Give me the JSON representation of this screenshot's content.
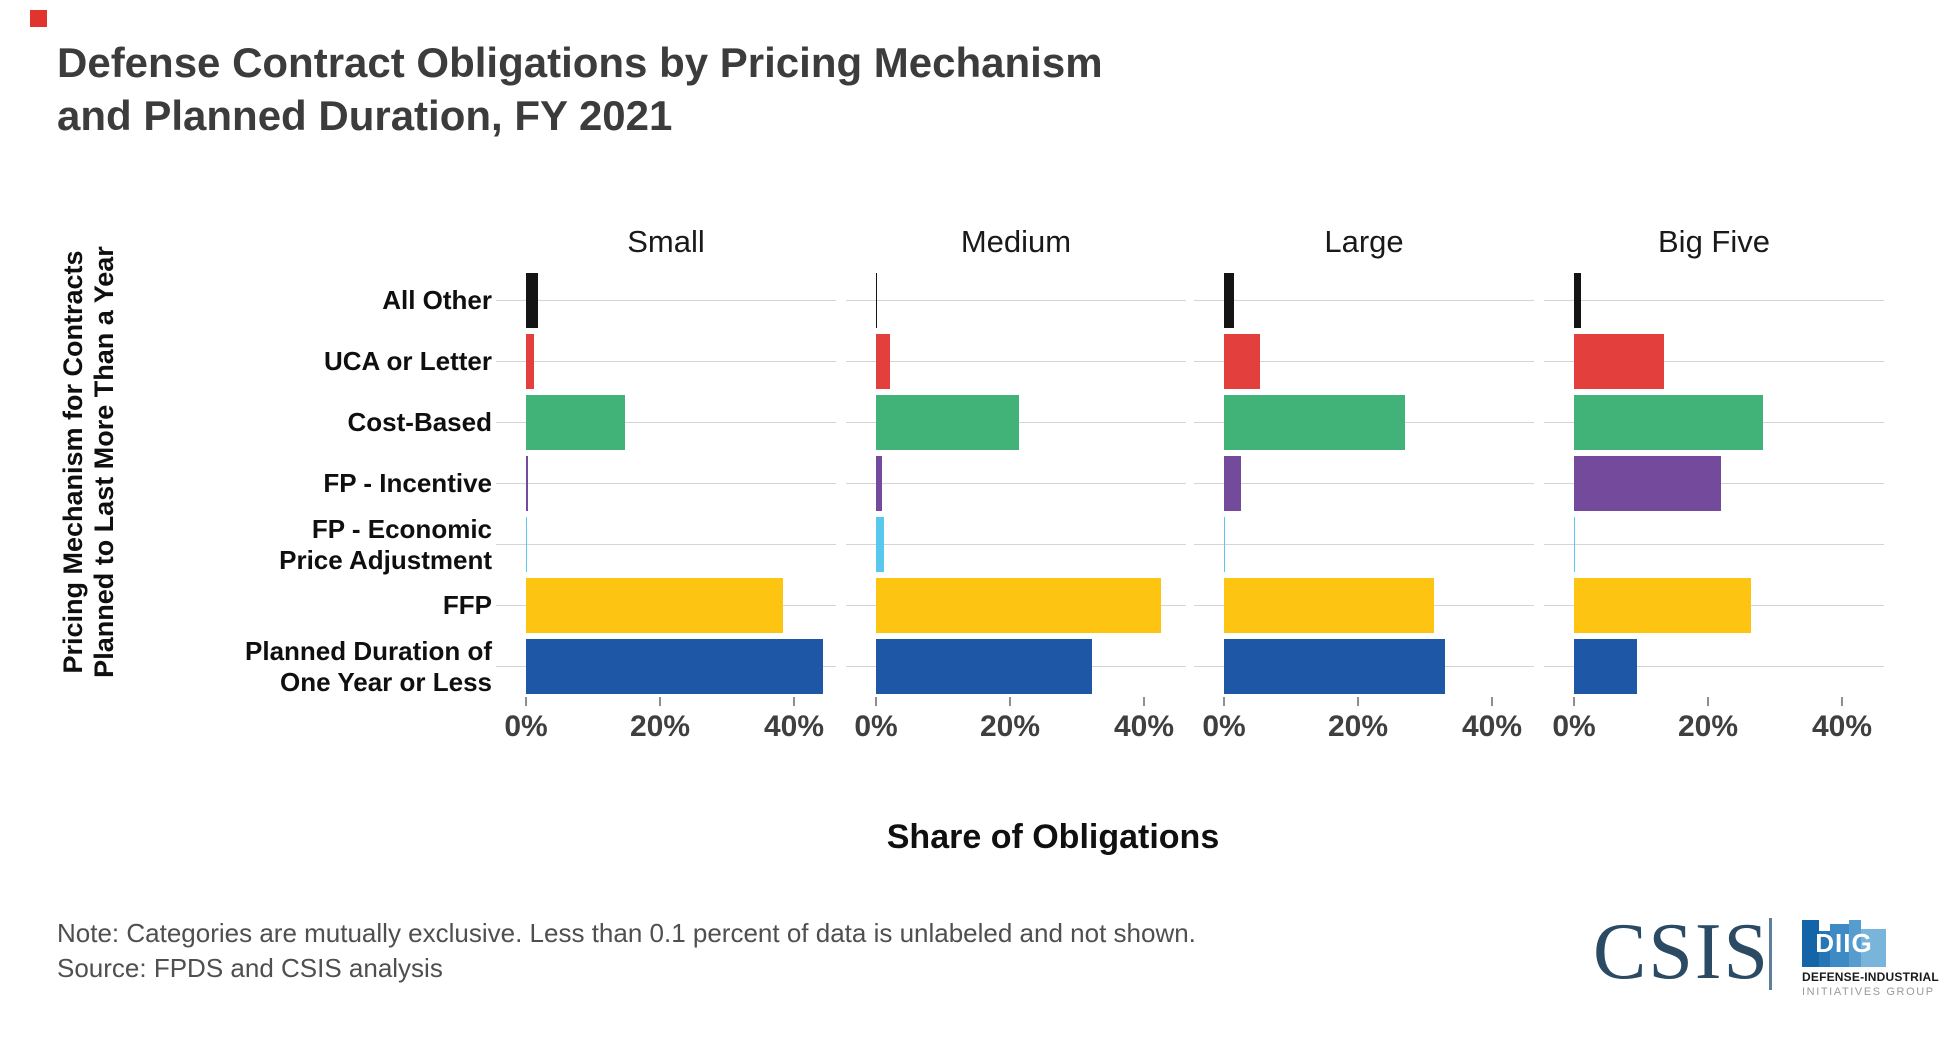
{
  "title": {
    "line1": "Defense Contract Obligations by Pricing Mechanism",
    "line2": "and Planned Duration, FY 2021"
  },
  "y_axis": {
    "line1": "Pricing Mechanism for Contracts",
    "line2": "Planned to Last More Than a Year"
  },
  "x_axis": {
    "title": "Share of Obligations",
    "tick_labels": [
      "0%",
      "20%",
      "40%"
    ],
    "tick_values": [
      0,
      20,
      40
    ]
  },
  "note": "Note: Categories are mutually exclusive. Less than 0.1 percent of data is unlabeled and not shown.",
  "source": "Source: FPDS and CSIS analysis",
  "branding": {
    "csis": "CSIS",
    "diig_acronym": "DIIG",
    "diig_line1": "DEFENSE-INDUSTRIAL",
    "diig_line2": "INITIATIVES GROUP",
    "csis_color": "#2b4a63",
    "red_square": "#e0342c"
  },
  "chart_data": {
    "type": "bar",
    "orientation": "horizontal",
    "facets": [
      "Small",
      "Medium",
      "Large",
      "Big Five"
    ],
    "categories": [
      "All Other",
      "UCA or Letter",
      "Cost-Based",
      "FP - Incentive",
      "FP - Economic Price Adjustment",
      "FFP",
      "Planned Duration of One Year or Less"
    ],
    "category_display_lines": [
      [
        "All Other"
      ],
      [
        "UCA or Letter"
      ],
      [
        "Cost-Based"
      ],
      [
        "FP - Incentive"
      ],
      [
        "FP - Economic",
        "Price Adjustment"
      ],
      [
        "FFP"
      ],
      [
        "Planned Duration of",
        "One Year or Less"
      ]
    ],
    "colors": [
      "#141414",
      "#e23f3d",
      "#41b278",
      "#744a9c",
      "#5ac8ee",
      "#fdc412",
      "#1d57a5"
    ],
    "series": [
      {
        "name": "Small",
        "values": [
          1.8,
          1.2,
          14.8,
          0.3,
          0.2,
          38.3,
          44.3
        ]
      },
      {
        "name": "Medium",
        "values": [
          0.2,
          2.1,
          21.4,
          0.9,
          1.2,
          42.5,
          32.2
        ]
      },
      {
        "name": "Large",
        "values": [
          1.5,
          5.3,
          27.0,
          2.6,
          0.2,
          31.3,
          33.0
        ]
      },
      {
        "name": "Big Five",
        "values": [
          1.0,
          13.4,
          28.2,
          22.0,
          0.2,
          26.4,
          9.4
        ]
      }
    ],
    "xlim": [
      0,
      46
    ],
    "unit": "percent",
    "grid": "horizontal-gridlines-per-row",
    "legend": "none"
  }
}
